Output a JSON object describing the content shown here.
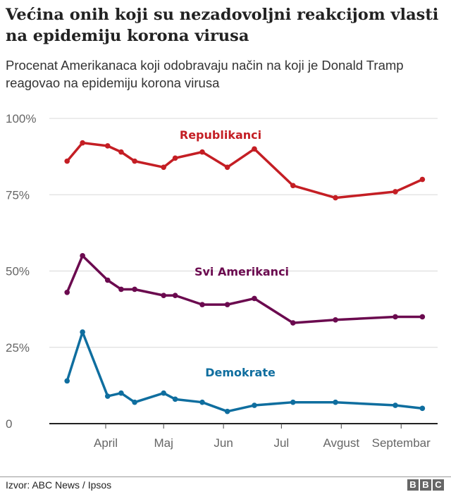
{
  "title": "Većina onih koji su nezadovoljni reakcijom vlasti na epidemiju korona virusa",
  "subtitle": "Procenat Amerikanaca koji odobravaju način na koji je Donald Tramp reagovao na epidemiju korona virusa",
  "source": "Izvor: ABC News / Ipsos",
  "logo": "BBC",
  "chart_data": {
    "type": "line",
    "x": [
      "2020-03-12",
      "2020-03-20",
      "2020-04-02",
      "2020-04-09",
      "2020-04-16",
      "2020-05-01",
      "2020-05-07",
      "2020-05-21",
      "2020-06-03",
      "2020-06-17",
      "2020-07-07",
      "2020-07-29",
      "2020-08-29",
      "2020-09-12"
    ],
    "ylim": [
      0,
      100
    ],
    "yticks": [
      "0",
      "25%",
      "50%",
      "75%",
      "100%"
    ],
    "ytick_values": [
      0,
      25,
      50,
      75,
      100
    ],
    "xticks": [
      {
        "label": "April",
        "date": "2020-04-01"
      },
      {
        "label": "Maj",
        "date": "2020-05-01"
      },
      {
        "label": "Jun",
        "date": "2020-06-01"
      },
      {
        "label": "Jul",
        "date": "2020-07-01"
      },
      {
        "label": "Avgust",
        "date": "2020-08-01"
      },
      {
        "label": "Septembar",
        "date": "2020-09-01"
      }
    ],
    "grid": true,
    "series": [
      {
        "name": "Republikanci",
        "color": "#c41e24",
        "values": [
          86,
          92,
          91,
          89,
          86,
          84,
          87,
          89,
          84,
          90,
          78,
          74,
          76,
          80
        ]
      },
      {
        "name": "Svi Amerikanci",
        "color": "#6b0a4f",
        "values": [
          43,
          55,
          47,
          44,
          44,
          42,
          42,
          39,
          39,
          41,
          33,
          34,
          35,
          35
        ]
      },
      {
        "name": "Demokrate",
        "color": "#0f6e9f",
        "values": [
          14,
          30,
          9,
          10,
          7,
          10,
          8,
          7,
          4,
          6,
          7,
          7,
          6,
          5
        ]
      }
    ]
  }
}
